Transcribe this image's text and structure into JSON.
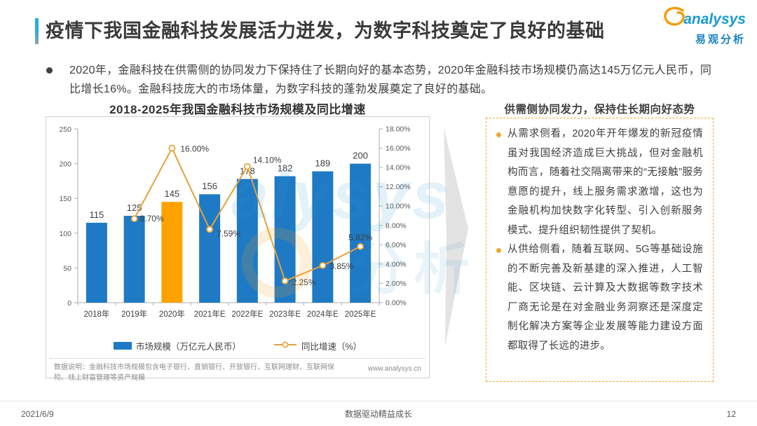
{
  "header": {
    "title": "疫情下我国金融科技发展活力迸发，为数字科技奠定了良好的基础",
    "logo": {
      "brand": "analysys",
      "brand_cn": "易观分析"
    }
  },
  "summary": {
    "text": "2020年，金融科技在供需侧的协同发力下保持住了长期向好的基本态势，2020年金融科技市场规模仍高达145万亿元人民币，同比增长16%。金融科技庞大的市场体量，为数字科技的蓬勃发展奠定了良好的基础。"
  },
  "chart": {
    "title": "2018-2025年我国金融科技市场规模及同比增速",
    "note": "数据说明：金融科技市场规模包含电子银行、直销银行、开放银行、互联网理财、互联网保险、线上财富管理等资产规模",
    "source": "www.analysys.cn"
  },
  "chart_data": {
    "type": "bar+line",
    "title": "2018-2025年我国金融科技市场规模及同比增速",
    "categories": [
      "2018年",
      "2019年",
      "2020年",
      "2021年E",
      "2022年E",
      "2023年E",
      "2024年E",
      "2025年E"
    ],
    "series": [
      {
        "name": "市场规模（万亿元人民币）",
        "type": "bar",
        "values": [
          115,
          125,
          145,
          156,
          178,
          182,
          189,
          200
        ],
        "color": "#1f7ac5",
        "highlight_index": 2,
        "highlight_color": "#ffa200"
      },
      {
        "name": "同比增速（%）",
        "type": "line",
        "values": [
          null,
          8.7,
          16.0,
          7.59,
          14.1,
          2.25,
          3.85,
          5.82
        ],
        "labels": [
          null,
          "8.70%",
          "16.00%",
          "7.59%",
          "14.10%",
          "2.25%",
          "3.85%",
          "5.82%"
        ],
        "color": "#e6a23c"
      }
    ],
    "left_axis": {
      "min": 0,
      "max": 250,
      "step": 50
    },
    "right_axis": {
      "min": 0,
      "max": 18,
      "step": 2,
      "suffix": "%",
      "decimals": 2
    },
    "grid": false,
    "legend_position": "bottom"
  },
  "panel": {
    "title": "供需侧协同发力，保持住长期向好态势",
    "bullets": [
      "从需求侧看，2020年开年爆发的新冠疫情虽对我国经济造成巨大挑战，但对金融机构而言，随着社交隔离带来的“无接触”服务意愿的提升，线上服务需求激增，这也为金融机构加快数字化转型、引入创新服务模式、提升组织韧性提供了契机。",
      "从供给侧看，随着互联网、5G等基础设施的不断完善及新基建的深入推进，人工智能、区块链、云计算及大数据等数字技术厂商无论是在对金融业务洞察还是深度定制化解决方案等企业发展等能力建设方面都取得了长远的进步。"
    ]
  },
  "watermark": {
    "latin": "alysys",
    "cn": "分析"
  },
  "footer": {
    "date": "2021/6/9",
    "center": "数据驱动精益成长",
    "page": "12"
  }
}
